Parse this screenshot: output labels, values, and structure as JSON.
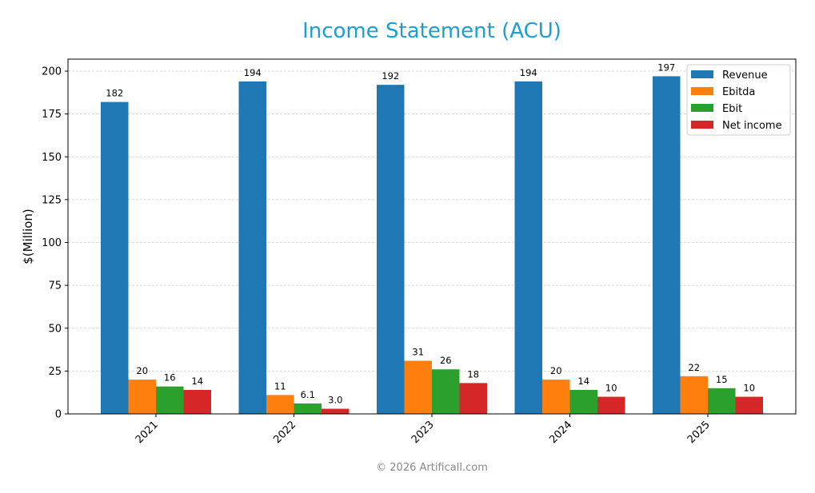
{
  "chart_data": {
    "type": "bar",
    "title": "Income Statement (ACU)",
    "xlabel": "",
    "ylabel": "$(Million)",
    "ylim": [
      0,
      207
    ],
    "yticks": [
      0,
      25,
      50,
      75,
      100,
      125,
      150,
      175,
      200
    ],
    "grid": "horizontal dashed",
    "legend_position": "upper right",
    "categories": [
      "2021",
      "2022",
      "2023",
      "2024",
      "2025"
    ],
    "series": [
      {
        "name": "Revenue",
        "color": "#1f77b4",
        "values": [
          182,
          194,
          192,
          194,
          197
        ],
        "labels": [
          "182",
          "194",
          "192",
          "194",
          "197"
        ]
      },
      {
        "name": "Ebitda",
        "color": "#ff7f0e",
        "values": [
          20,
          11,
          31,
          20,
          22
        ],
        "labels": [
          "20",
          "11",
          "31",
          "20",
          "22"
        ]
      },
      {
        "name": "Ebit",
        "color": "#2ca02c",
        "values": [
          16,
          6.1,
          26,
          14,
          15
        ],
        "labels": [
          "16",
          "6.1",
          "26",
          "14",
          "15"
        ]
      },
      {
        "name": "Net income",
        "color": "#d62728",
        "values": [
          14,
          3.0,
          18,
          10,
          10
        ],
        "labels": [
          "14",
          "3.0",
          "18",
          "10",
          "10"
        ]
      }
    ]
  },
  "watermark": "© 2026 Artificall.com"
}
